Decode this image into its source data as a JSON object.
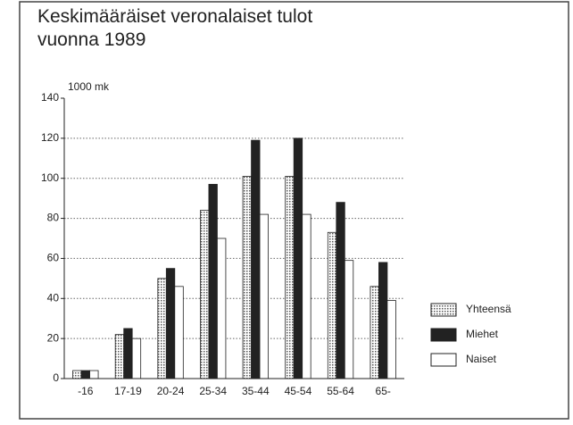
{
  "chart_data": {
    "type": "bar",
    "title": "Keskimääräiset veronalaiset tulot vuonna 1989",
    "y_label": "1000 mk",
    "categories": [
      "-16",
      "17-19",
      "20-24",
      "25-34",
      "35-44",
      "45-54",
      "55-64",
      "65-"
    ],
    "series": [
      {
        "name": "Yhteensä",
        "color": "#c4c4c4",
        "values": [
          4,
          22,
          50,
          84,
          101,
          101,
          73,
          46
        ]
      },
      {
        "name": "Miehet",
        "color": "#222222",
        "values": [
          4,
          25,
          55,
          97,
          119,
          120,
          88,
          58
        ]
      },
      {
        "name": "Naiset",
        "color": "#ffffff",
        "values": [
          4,
          20,
          46,
          70,
          82,
          82,
          59,
          39
        ]
      }
    ],
    "ylim": [
      0,
      140
    ],
    "yticks": [
      0,
      20,
      40,
      60,
      80,
      100,
      120,
      140
    ],
    "grid": true,
    "legend": "right"
  }
}
